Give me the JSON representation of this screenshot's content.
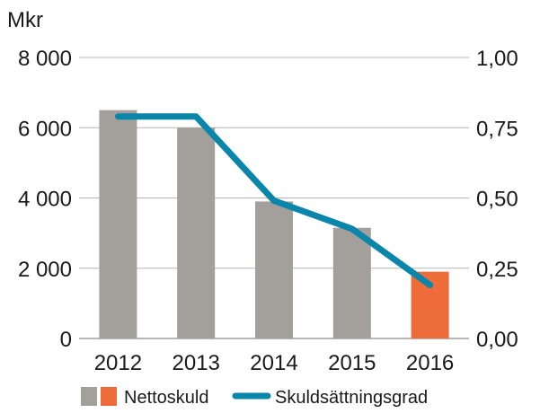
{
  "chart_data": {
    "type": "bar",
    "unit_label": "Mkr",
    "categories": [
      "2012",
      "2013",
      "2014",
      "2015",
      "2016"
    ],
    "series": [
      {
        "name": "Nettoskuld",
        "type": "bar",
        "axis": "left",
        "values": [
          6500,
          6000,
          3900,
          3150,
          1900
        ],
        "colors": [
          "#a39f9a",
          "#a39f9a",
          "#a39f9a",
          "#a39f9a",
          "#ee6b3a"
        ]
      },
      {
        "name": "Skuldsättningsgrad",
        "type": "line",
        "axis": "right",
        "color": "#0a86ab",
        "values": [
          0.79,
          0.79,
          0.49,
          0.39,
          0.19
        ]
      }
    ],
    "y_left": {
      "min": 0,
      "max": 8000,
      "ticks": [
        "0",
        "2 000",
        "4 000",
        "6 000",
        "8 000"
      ],
      "tick_values": [
        0,
        2000,
        4000,
        6000,
        8000
      ]
    },
    "y_right": {
      "min": 0,
      "max": 1,
      "ticks": [
        "0,00",
        "0,25",
        "0,50",
        "0,75",
        "1,00"
      ],
      "tick_values": [
        0,
        0.25,
        0.5,
        0.75,
        1.0
      ]
    },
    "grid": true,
    "legend_position": "bottom",
    "legend": {
      "bar_label": "Nettoskuld",
      "line_label": "Skuldsättningsgrad",
      "bar_swatch_colors": [
        "#a39f9a",
        "#ee6b3a"
      ]
    }
  }
}
